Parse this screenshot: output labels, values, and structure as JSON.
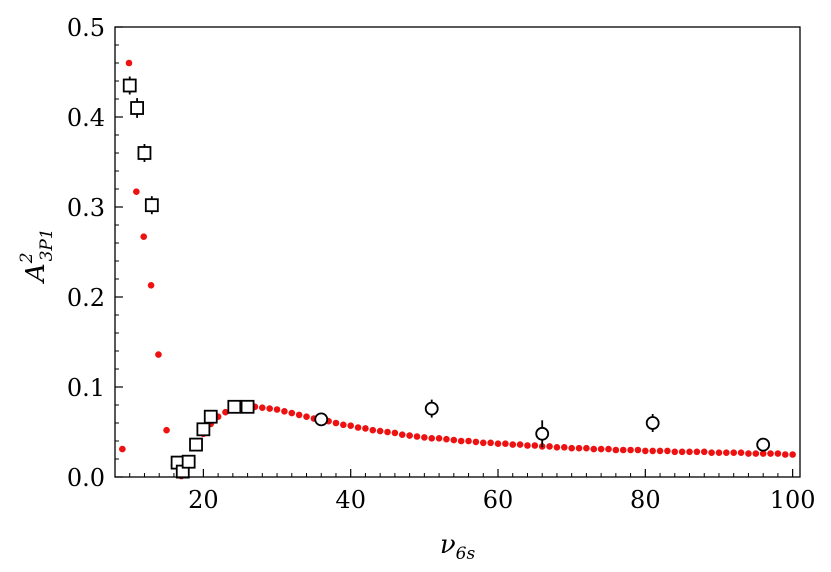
{
  "chart_data": {
    "type": "scatter",
    "title": "",
    "xlabel": "ν6s",
    "ylabel": "A²₃P₁",
    "xlabel_parts": {
      "base": "ν",
      "sub": "6s"
    },
    "ylabel_parts": {
      "base": "A",
      "sup": "2",
      "sub": "3P1"
    },
    "xlim": [
      8,
      101
    ],
    "ylim": [
      0,
      0.5
    ],
    "xticks": [
      20,
      40,
      60,
      80,
      100
    ],
    "yticks": [
      0.0,
      0.1,
      0.2,
      0.3,
      0.4,
      0.5
    ],
    "xtick_labels": [
      "20",
      "40",
      "60",
      "80",
      "100"
    ],
    "ytick_labels": [
      "0.0",
      "0.1",
      "0.2",
      "0.3",
      "0.4",
      "0.5"
    ],
    "grid": false,
    "legend": "none",
    "series": [
      {
        "marker": "square-open",
        "color": "#000000",
        "points": [
          {
            "x": 10.0,
            "y": 0.435,
            "err": 0.01
          },
          {
            "x": 11.0,
            "y": 0.41,
            "err": 0.011
          },
          {
            "x": 12.0,
            "y": 0.36,
            "err": 0.01
          },
          {
            "x": 13.0,
            "y": 0.302,
            "err": 0.01
          },
          {
            "x": 16.5,
            "y": 0.016,
            "err": 0.004
          },
          {
            "x": 17.2,
            "y": 0.006,
            "err": 0.004
          },
          {
            "x": 18.0,
            "y": 0.017,
            "err": 0.004
          },
          {
            "x": 19.0,
            "y": 0.036,
            "err": 0.004
          },
          {
            "x": 20.0,
            "y": 0.053,
            "err": 0.004
          },
          {
            "x": 21.0,
            "y": 0.067,
            "err": 0.004
          },
          {
            "x": 24.2,
            "y": 0.078,
            "err": 0.004
          },
          {
            "x": 26.0,
            "y": 0.078,
            "err": 0.004
          }
        ]
      },
      {
        "marker": "circle-open",
        "color": "#000000",
        "points": [
          {
            "x": 36,
            "y": 0.064,
            "err": 0.005
          },
          {
            "x": 51,
            "y": 0.076,
            "err": 0.01
          },
          {
            "x": 66,
            "y": 0.048,
            "err": 0.015
          },
          {
            "x": 81,
            "y": 0.06,
            "err": 0.01
          },
          {
            "x": 96,
            "y": 0.036,
            "err": 0.005
          }
        ]
      },
      {
        "marker": "dot",
        "color": "#ee1111",
        "points": [
          {
            "x": 9.0,
            "y": 0.031
          },
          {
            "x": 9.9,
            "y": 0.46
          },
          {
            "x": 10.9,
            "y": 0.317
          },
          {
            "x": 11.9,
            "y": 0.267
          },
          {
            "x": 12.9,
            "y": 0.213
          },
          {
            "x": 13.9,
            "y": 0.136
          },
          {
            "x": 15.0,
            "y": 0.052
          },
          {
            "x": 16.0,
            "y": 0.013
          },
          {
            "x": 17.0,
            "y": 0.001
          },
          {
            "x": 18.0,
            "y": 0.014
          },
          {
            "x": 19.0,
            "y": 0.035
          },
          {
            "x": 20.0,
            "y": 0.048
          },
          {
            "x": 21.0,
            "y": 0.059
          },
          {
            "x": 22.0,
            "y": 0.067
          },
          {
            "x": 23.0,
            "y": 0.072
          },
          {
            "x": 24.0,
            "y": 0.075
          },
          {
            "x": 25.0,
            "y": 0.077
          },
          {
            "x": 26.0,
            "y": 0.078
          },
          {
            "x": 27.0,
            "y": 0.078
          },
          {
            "x": 28.0,
            "y": 0.077
          },
          {
            "x": 29.0,
            "y": 0.076
          },
          {
            "x": 30.0,
            "y": 0.075
          },
          {
            "x": 31.0,
            "y": 0.073
          },
          {
            "x": 32.0,
            "y": 0.071
          },
          {
            "x": 33.0,
            "y": 0.069
          },
          {
            "x": 34.0,
            "y": 0.067
          },
          {
            "x": 35.0,
            "y": 0.065
          },
          {
            "x": 36.0,
            "y": 0.064
          },
          {
            "x": 37.0,
            "y": 0.062
          },
          {
            "x": 38.0,
            "y": 0.06
          },
          {
            "x": 39.0,
            "y": 0.058
          },
          {
            "x": 40.0,
            "y": 0.057
          },
          {
            "x": 41.0,
            "y": 0.055
          },
          {
            "x": 42.0,
            "y": 0.054
          },
          {
            "x": 43.0,
            "y": 0.052
          },
          {
            "x": 44.0,
            "y": 0.051
          },
          {
            "x": 45.0,
            "y": 0.05
          },
          {
            "x": 46.0,
            "y": 0.049
          },
          {
            "x": 47.0,
            "y": 0.047
          },
          {
            "x": 48.0,
            "y": 0.046
          },
          {
            "x": 49.0,
            "y": 0.045
          },
          {
            "x": 50.0,
            "y": 0.044
          },
          {
            "x": 51.0,
            "y": 0.043
          },
          {
            "x": 52.0,
            "y": 0.043
          },
          {
            "x": 53.0,
            "y": 0.042
          },
          {
            "x": 54.0,
            "y": 0.041
          },
          {
            "x": 55.0,
            "y": 0.04
          },
          {
            "x": 56.0,
            "y": 0.04
          },
          {
            "x": 57.0,
            "y": 0.039
          },
          {
            "x": 58.0,
            "y": 0.038
          },
          {
            "x": 59.0,
            "y": 0.038
          },
          {
            "x": 60.0,
            "y": 0.037
          },
          {
            "x": 61.0,
            "y": 0.037
          },
          {
            "x": 62.0,
            "y": 0.036
          },
          {
            "x": 63.0,
            "y": 0.036
          },
          {
            "x": 64.0,
            "y": 0.035
          },
          {
            "x": 65.0,
            "y": 0.035
          },
          {
            "x": 66.0,
            "y": 0.034
          },
          {
            "x": 67.0,
            "y": 0.034
          },
          {
            "x": 68.0,
            "y": 0.033
          },
          {
            "x": 69.0,
            "y": 0.033
          },
          {
            "x": 70.0,
            "y": 0.032
          },
          {
            "x": 71.0,
            "y": 0.032
          },
          {
            "x": 72.0,
            "y": 0.032
          },
          {
            "x": 73.0,
            "y": 0.031
          },
          {
            "x": 74.0,
            "y": 0.031
          },
          {
            "x": 75.0,
            "y": 0.031
          },
          {
            "x": 76.0,
            "y": 0.03
          },
          {
            "x": 77.0,
            "y": 0.03
          },
          {
            "x": 78.0,
            "y": 0.03
          },
          {
            "x": 79.0,
            "y": 0.03
          },
          {
            "x": 80.0,
            "y": 0.029
          },
          {
            "x": 81.0,
            "y": 0.029
          },
          {
            "x": 82.0,
            "y": 0.029
          },
          {
            "x": 83.0,
            "y": 0.029
          },
          {
            "x": 84.0,
            "y": 0.028
          },
          {
            "x": 85.0,
            "y": 0.028
          },
          {
            "x": 86.0,
            "y": 0.028
          },
          {
            "x": 87.0,
            "y": 0.028
          },
          {
            "x": 88.0,
            "y": 0.028
          },
          {
            "x": 89.0,
            "y": 0.027
          },
          {
            "x": 90.0,
            "y": 0.027
          },
          {
            "x": 91.0,
            "y": 0.027
          },
          {
            "x": 92.0,
            "y": 0.027
          },
          {
            "x": 93.0,
            "y": 0.027
          },
          {
            "x": 94.0,
            "y": 0.026
          },
          {
            "x": 95.0,
            "y": 0.026
          },
          {
            "x": 96.0,
            "y": 0.026
          },
          {
            "x": 97.0,
            "y": 0.026
          },
          {
            "x": 98.0,
            "y": 0.026
          },
          {
            "x": 99.0,
            "y": 0.025
          },
          {
            "x": 100.0,
            "y": 0.025
          }
        ]
      }
    ]
  }
}
